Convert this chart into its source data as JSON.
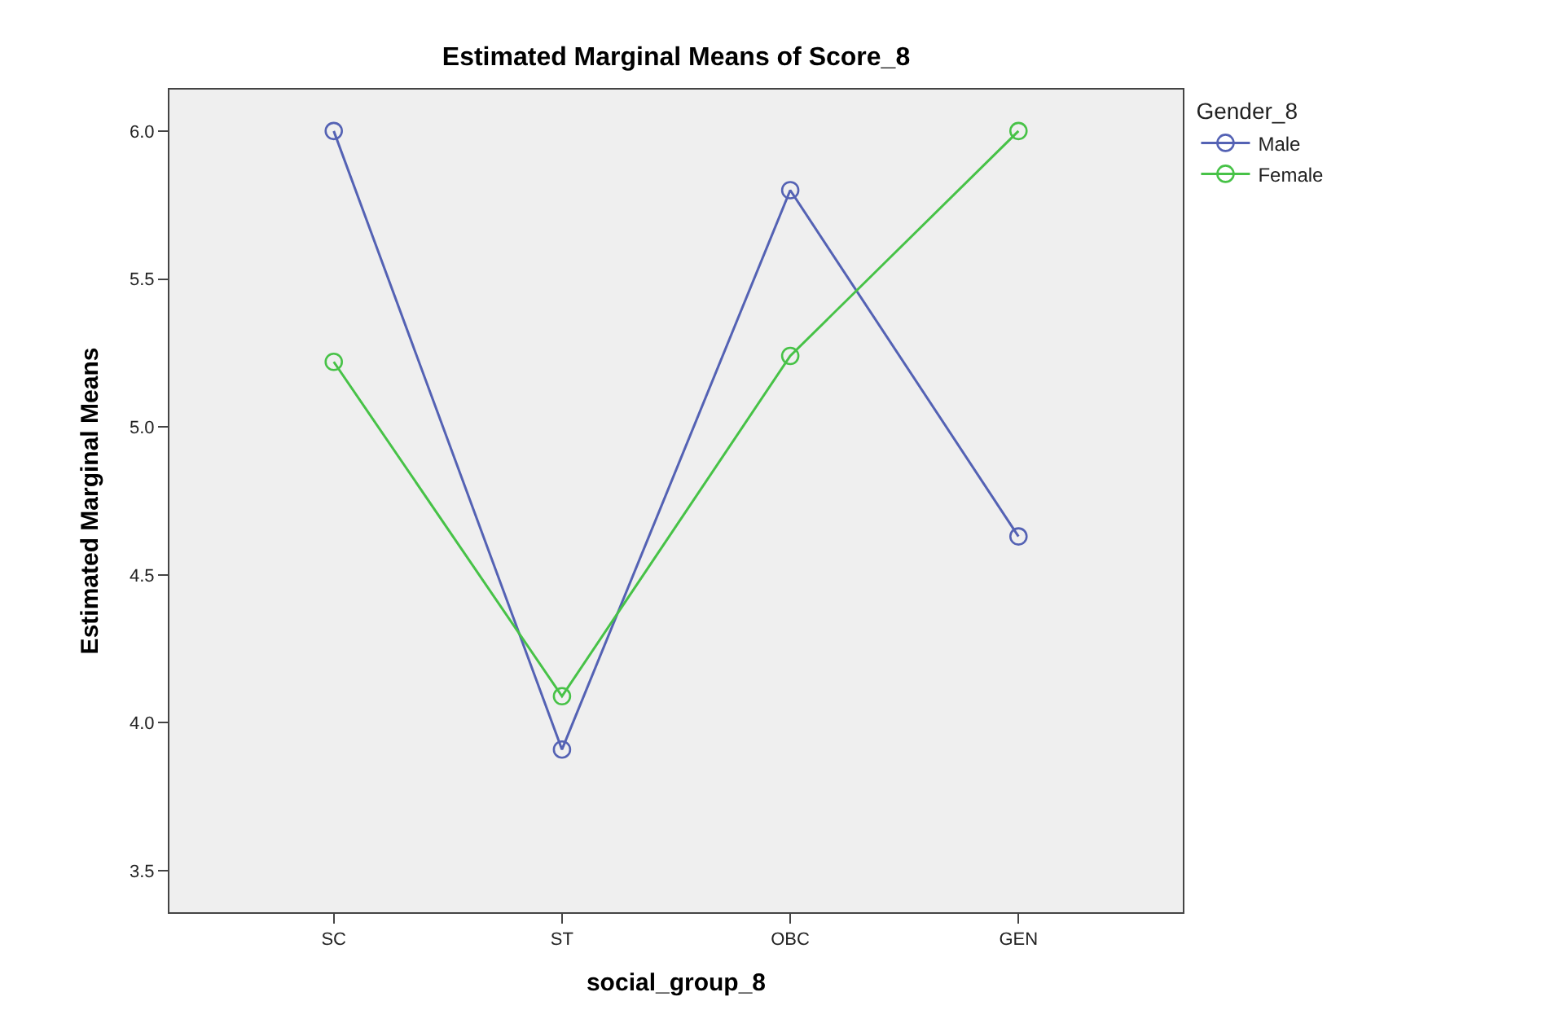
{
  "chart_data": {
    "type": "line",
    "title": "Estimated Marginal Means of Score_8",
    "xlabel": "social_group_8",
    "ylabel": "Estimated Marginal Means",
    "legend_title": "Gender_8",
    "categories": [
      "SC",
      "ST",
      "OBC",
      "GEN"
    ],
    "series": [
      {
        "name": "Male",
        "color": "#5462b4",
        "values": [
          6.0,
          3.91,
          5.8,
          4.63
        ]
      },
      {
        "name": "Female",
        "color": "#47c247",
        "values": [
          5.22,
          4.09,
          5.24,
          6.0
        ]
      }
    ],
    "ylim": [
      3.36,
      6.14
    ],
    "yticks": [
      {
        "value": 3.5,
        "label": "3.5"
      },
      {
        "value": 4.0,
        "label": "4.0"
      },
      {
        "value": 4.5,
        "label": "4.5"
      },
      {
        "value": 5.0,
        "label": "5.0"
      },
      {
        "value": 5.5,
        "label": "5.5"
      },
      {
        "value": 6.0,
        "label": "6.0"
      }
    ],
    "grid": false,
    "legend": "top right",
    "marker": "circle",
    "line_style": "solid"
  }
}
